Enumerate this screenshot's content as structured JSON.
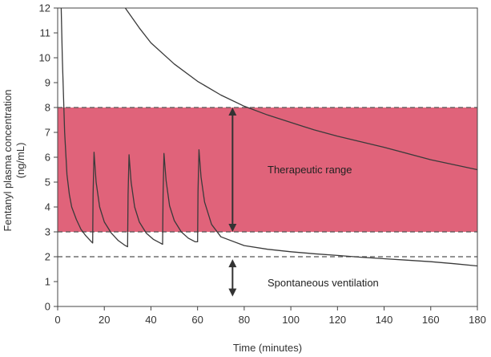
{
  "chart_data": {
    "type": "line",
    "xlabel": "Time (minutes)",
    "ylabel": "Fentanyl plasma concentration (ng/mL)",
    "ylabel_lines": [
      "Fentanyl plasma concentration",
      "(ng/mL)"
    ],
    "xlim": [
      0,
      180
    ],
    "ylim": [
      0,
      12
    ],
    "x_ticks": [
      0,
      20,
      40,
      60,
      80,
      100,
      120,
      140,
      160,
      180
    ],
    "y_ticks": [
      0,
      1,
      2,
      3,
      4,
      5,
      6,
      7,
      8,
      9,
      10,
      11,
      12
    ],
    "grid": false,
    "bands": [
      {
        "label": "Therapeutic range",
        "y_range": [
          3,
          8
        ],
        "color": "#e0637a"
      }
    ],
    "reference_lines": [
      {
        "y": 3,
        "style": "dashed"
      },
      {
        "y": 8,
        "style": "dashed"
      },
      {
        "y": 2,
        "style": "dashed"
      }
    ],
    "annotations": [
      {
        "text": "Therapeutic range",
        "x": 90,
        "y": 5.5,
        "arrow_x": 75,
        "arrow_y_range": [
          3,
          8
        ]
      },
      {
        "text": "Spontaneous ventilation",
        "x": 90,
        "y": 0.95,
        "arrow_x": 75,
        "arrow_y_range": [
          0.4,
          1.9
        ]
      }
    ],
    "series": [
      {
        "style": "solid",
        "x": [
          1.5,
          2,
          3,
          4,
          5,
          6,
          8,
          10,
          12,
          14,
          15,
          15.2,
          15.6,
          16.5,
          18,
          20,
          23,
          26,
          29,
          30,
          30.2,
          30.6,
          31.5,
          33,
          35,
          38,
          41,
          44,
          45,
          45.2,
          45.6,
          46.5,
          48,
          50,
          53,
          56,
          59,
          60,
          60.2,
          60.6,
          61.5,
          63,
          66,
          70,
          80,
          90,
          100,
          110,
          120,
          130,
          140,
          150,
          160,
          170,
          180
        ],
        "y": [
          12,
          10,
          7,
          5.3,
          4.5,
          4,
          3.5,
          3.1,
          2.85,
          2.65,
          2.55,
          4.5,
          6.2,
          5,
          4,
          3.4,
          2.95,
          2.65,
          2.45,
          2.4,
          4.5,
          6.1,
          5,
          4,
          3.4,
          2.95,
          2.7,
          2.55,
          2.5,
          4.5,
          6.15,
          5.05,
          4.05,
          3.45,
          3,
          2.75,
          2.6,
          2.6,
          4.6,
          6.3,
          5.2,
          4.2,
          3.3,
          2.8,
          2.45,
          2.3,
          2.2,
          2.12,
          2.05,
          1.98,
          1.92,
          1.86,
          1.8,
          1.72,
          1.63
        ]
      },
      {
        "style": "solid",
        "x": [
          29,
          35,
          40,
          50,
          60,
          70,
          80,
          90,
          100,
          110,
          120,
          140,
          160,
          180
        ],
        "y": [
          12,
          11.2,
          10.6,
          9.75,
          9.05,
          8.5,
          8.05,
          7.7,
          7.4,
          7.1,
          6.85,
          6.4,
          5.9,
          5.5
        ]
      }
    ]
  }
}
